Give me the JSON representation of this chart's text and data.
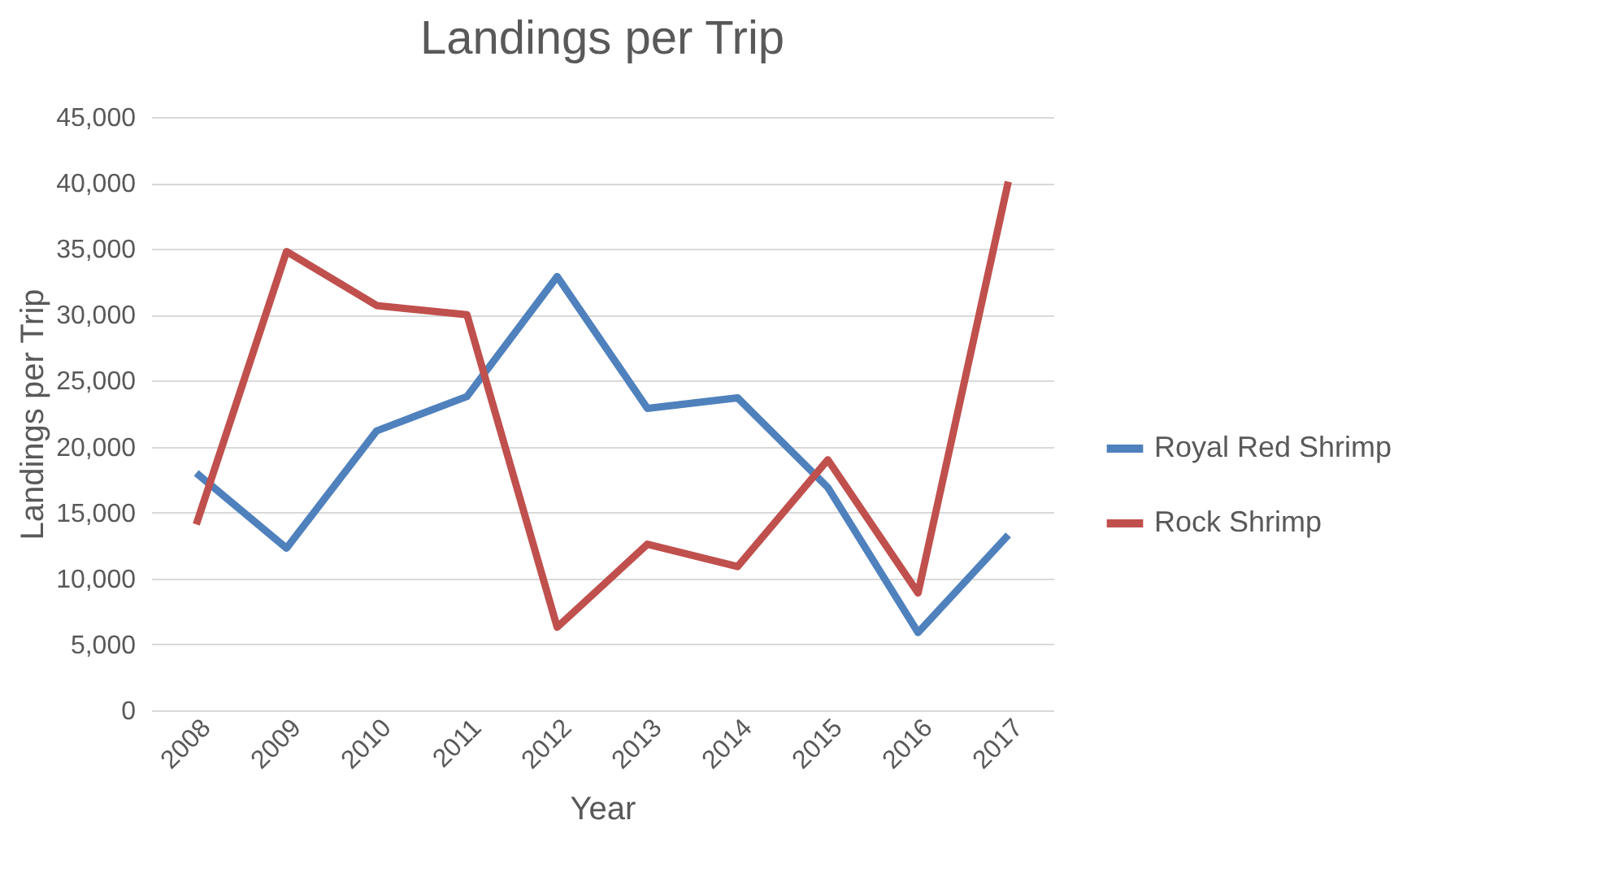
{
  "chart_data": {
    "type": "line",
    "title": "Landings per Trip",
    "xlabel": "Year",
    "ylabel": "Landings per Trip",
    "categories": [
      "2008",
      "2009",
      "2010",
      "2011",
      "2012",
      "2013",
      "2014",
      "2015",
      "2016",
      "2017"
    ],
    "series": [
      {
        "name": "Royal Red Shrimp",
        "color": "#4f81bd",
        "values": [
          18000,
          12300,
          21200,
          23800,
          32900,
          22900,
          23700,
          16900,
          5900,
          13300
        ]
      },
      {
        "name": "Rock Shrimp",
        "color": "#c0504d",
        "values": [
          14100,
          34800,
          30700,
          30000,
          6300,
          12600,
          10900,
          19000,
          8900,
          40100
        ]
      }
    ],
    "ylim": [
      0,
      45000
    ],
    "yticks": [
      0,
      {
        "value": 5000,
        "label": "5,000"
      },
      {
        "value": 10000,
        "label": "10,000"
      },
      {
        "value": 15000,
        "label": "15,000"
      },
      {
        "value": 20000,
        "label": "20,000"
      },
      {
        "value": 25000,
        "label": "25,000"
      },
      {
        "value": 30000,
        "label": "30,000"
      },
      {
        "value": 35000,
        "label": "35,000"
      },
      {
        "value": 40000,
        "label": "40,000"
      },
      {
        "value": 45000,
        "label": "45,000"
      }
    ],
    "grid": "y",
    "legend": "right",
    "marker": "none",
    "line_style": "solid"
  }
}
